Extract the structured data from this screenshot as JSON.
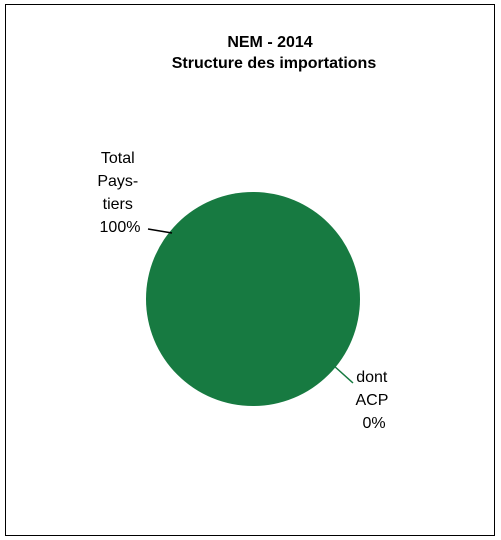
{
  "chart_data": {
    "type": "pie",
    "title": [
      "NEM - 2014",
      "Structure des importations"
    ],
    "slices": [
      {
        "name": "Total Pays-tiers",
        "label_lines": [
          "Total",
          "Pays-",
          "tiers",
          "100%"
        ],
        "value": 100,
        "color": "#177a41"
      },
      {
        "name": "dont ACP",
        "label_lines": [
          "dont",
          "ACP",
          "0%"
        ],
        "value": 0,
        "color": "#000000"
      }
    ],
    "leader_color": "#000000",
    "legend": "none"
  }
}
